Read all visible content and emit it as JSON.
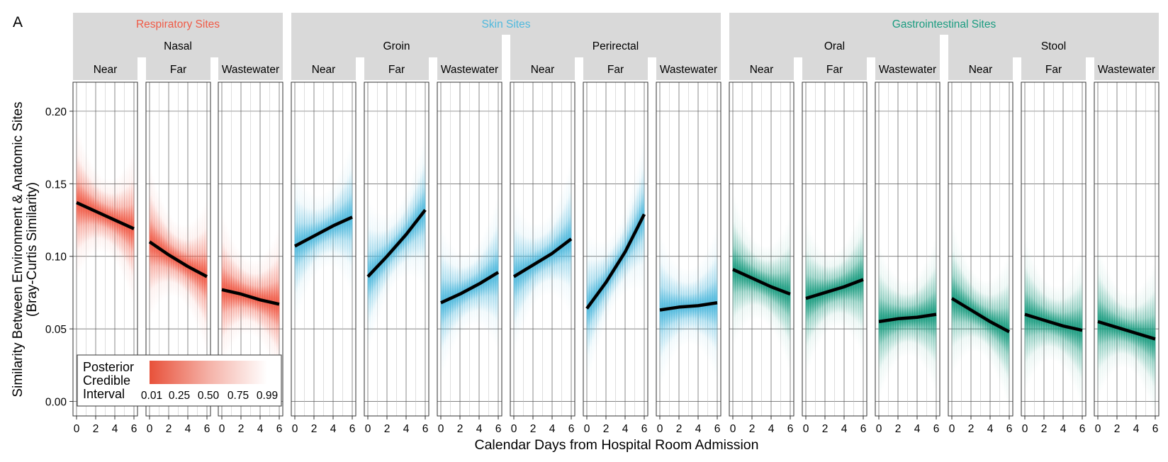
{
  "panel_letter": "A",
  "chart_data": {
    "type": "line",
    "ylabel_line1": "Similarity Between Environment & Anatomic Sites",
    "ylabel_line2": "(Bray-Curtis Similarity)",
    "xlabel": "Calendar Days from Hospital Room Admission",
    "ylim": [
      -0.01,
      0.22
    ],
    "xlim": [
      0,
      6
    ],
    "y_ticks": [
      "0.00",
      "0.05",
      "0.10",
      "0.15",
      "0.20"
    ],
    "y_tick_values": [
      0,
      0.05,
      0.1,
      0.15,
      0.2
    ],
    "x_ticks": [
      "0",
      "2",
      "4",
      "6"
    ],
    "x_tick_values": [
      0,
      2,
      4,
      6
    ],
    "grid": true,
    "legend": {
      "placement": "bottom-left",
      "title": [
        "Posterior",
        "Credible",
        "Interval"
      ],
      "labels": [
        "0.01",
        "0.25",
        "0.50",
        "0.75",
        "0.99"
      ],
      "colors": [
        "#e8513a",
        "#ffffff"
      ]
    },
    "groups": [
      {
        "label": "Respiratory Sites",
        "color": "#f05a46",
        "sites": [
          {
            "label": "Nasal",
            "panels": [
              {
                "label": "Near",
                "x": [
                  0,
                  2,
                  4,
                  6
                ],
                "y": [
                  0.137,
                  0.131,
                  0.125,
                  0.119
                ]
              },
              {
                "label": "Far",
                "x": [
                  0,
                  2,
                  4,
                  6
                ],
                "y": [
                  0.11,
                  0.101,
                  0.093,
                  0.086
                ]
              },
              {
                "label": "Wastewater",
                "x": [
                  0,
                  2,
                  4,
                  6
                ],
                "y": [
                  0.077,
                  0.074,
                  0.07,
                  0.067
                ]
              }
            ]
          }
        ]
      },
      {
        "label": "Skin Sites",
        "color": "#4fb9dd",
        "sites": [
          {
            "label": "Groin",
            "panels": [
              {
                "label": "Near",
                "x": [
                  0,
                  2,
                  4,
                  6
                ],
                "y": [
                  0.107,
                  0.114,
                  0.121,
                  0.127
                ]
              },
              {
                "label": "Far",
                "x": [
                  0,
                  2,
                  4,
                  6
                ],
                "y": [
                  0.086,
                  0.1,
                  0.115,
                  0.132
                ]
              },
              {
                "label": "Wastewater",
                "x": [
                  0,
                  2,
                  4,
                  6
                ],
                "y": [
                  0.068,
                  0.074,
                  0.081,
                  0.089
                ]
              }
            ]
          },
          {
            "label": "Perirectal",
            "panels": [
              {
                "label": "Near",
                "x": [
                  0,
                  2,
                  4,
                  6
                ],
                "y": [
                  0.086,
                  0.094,
                  0.102,
                  0.112
                ]
              },
              {
                "label": "Far",
                "x": [
                  0,
                  2,
                  4,
                  6
                ],
                "y": [
                  0.064,
                  0.082,
                  0.103,
                  0.129
                ]
              },
              {
                "label": "Wastewater",
                "x": [
                  0,
                  2,
                  4,
                  6
                ],
                "y": [
                  0.063,
                  0.065,
                  0.066,
                  0.068
                ]
              }
            ]
          }
        ]
      },
      {
        "label": "Gastrointestinal Sites",
        "color": "#1a9c80",
        "sites": [
          {
            "label": "Oral",
            "panels": [
              {
                "label": "Near",
                "x": [
                  0,
                  2,
                  4,
                  6
                ],
                "y": [
                  0.091,
                  0.085,
                  0.079,
                  0.074
                ]
              },
              {
                "label": "Far",
                "x": [
                  0,
                  2,
                  4,
                  6
                ],
                "y": [
                  0.071,
                  0.075,
                  0.079,
                  0.084
                ]
              },
              {
                "label": "Wastewater",
                "x": [
                  0,
                  2,
                  4,
                  6
                ],
                "y": [
                  0.055,
                  0.057,
                  0.058,
                  0.06
                ]
              }
            ]
          },
          {
            "label": "Stool",
            "panels": [
              {
                "label": "Near",
                "x": [
                  0,
                  2,
                  4,
                  6
                ],
                "y": [
                  0.071,
                  0.063,
                  0.055,
                  0.048
                ]
              },
              {
                "label": "Far",
                "x": [
                  0,
                  2,
                  4,
                  6
                ],
                "y": [
                  0.06,
                  0.056,
                  0.052,
                  0.049
                ]
              },
              {
                "label": "Wastewater",
                "x": [
                  0,
                  2,
                  4,
                  6
                ],
                "y": [
                  0.055,
                  0.051,
                  0.047,
                  0.043
                ]
              }
            ]
          }
        ]
      }
    ]
  }
}
